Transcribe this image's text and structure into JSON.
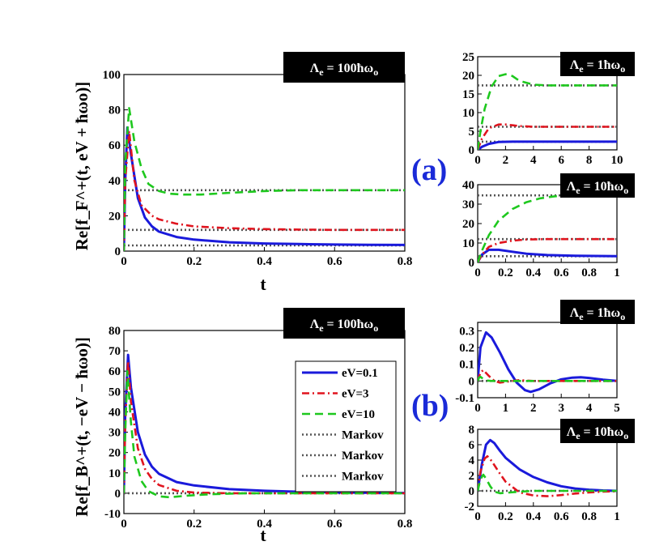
{
  "colors": {
    "blue": "#1a1adb",
    "red": "#e0141e",
    "green": "#1ec81e",
    "markov": "#555555"
  },
  "panel_tags": {
    "a": "(a)",
    "b": "(b)"
  },
  "legend": [
    {
      "label": "eV=0.1",
      "style": "solid",
      "color": "#1a1adb"
    },
    {
      "label": "eV=3",
      "style": "dashdot",
      "color": "#e0141e"
    },
    {
      "label": "eV=10",
      "style": "dashed",
      "color": "#1ec81e"
    },
    {
      "label": "Markov",
      "style": "dotted",
      "color": "#555555"
    },
    {
      "label": "Markov",
      "style": "dotted",
      "color": "#555555"
    },
    {
      "label": "Markov",
      "style": "dotted",
      "color": "#555555"
    }
  ],
  "chart_data": [
    {
      "id": "a_main",
      "type": "line",
      "title": "Λe = 100ħωo",
      "xlabel": "t",
      "ylabel": "Re[f_F^+(t, eV + ħωo)]",
      "xlim": [
        0,
        0.8
      ],
      "ylim": [
        0,
        100
      ],
      "xticks": [
        "0",
        "0.2",
        "0.4",
        "0.6",
        "0.8"
      ],
      "yticks": [
        "0",
        "20",
        "40",
        "60",
        "80",
        "100"
      ],
      "series": [
        {
          "name": "eV=0.1",
          "x": [
            0,
            0.004,
            0.01,
            0.02,
            0.04,
            0.06,
            0.08,
            0.1,
            0.15,
            0.2,
            0.3,
            0.4,
            0.5,
            0.6,
            0.7,
            0.8
          ],
          "y": [
            0,
            40,
            70,
            55,
            30,
            19,
            14,
            11,
            8,
            6.5,
            5,
            4.3,
            4,
            3.7,
            3.6,
            3.5
          ]
        },
        {
          "name": "eV=3",
          "x": [
            0,
            0.004,
            0.015,
            0.03,
            0.05,
            0.08,
            0.1,
            0.15,
            0.2,
            0.3,
            0.4,
            0.5,
            0.6,
            0.7,
            0.8
          ],
          "y": [
            0,
            40,
            68,
            40,
            26,
            20,
            18,
            15.5,
            14,
            13,
            12.5,
            12.2,
            12,
            12,
            12
          ]
        },
        {
          "name": "eV=10",
          "x": [
            0,
            0.004,
            0.015,
            0.03,
            0.05,
            0.07,
            0.1,
            0.13,
            0.17,
            0.22,
            0.3,
            0.4,
            0.5,
            0.6,
            0.7,
            0.8
          ],
          "y": [
            0,
            50,
            81,
            62,
            47,
            38,
            34,
            32.5,
            32,
            32,
            33,
            34,
            34.5,
            34.5,
            34.5,
            34.5
          ]
        },
        {
          "name": "Markov",
          "x": [
            0,
            0.8
          ],
          "y": [
            34.5,
            34.5
          ]
        },
        {
          "name": "Markov",
          "x": [
            0,
            0.8
          ],
          "y": [
            12,
            12
          ]
        },
        {
          "name": "Markov",
          "x": [
            0,
            0.8
          ],
          "y": [
            3.2,
            3.2
          ]
        }
      ]
    },
    {
      "id": "a_inset1",
      "type": "line",
      "title": "Λe = 1ħωo",
      "xlim": [
        0,
        10
      ],
      "ylim": [
        0,
        25
      ],
      "xticks": [
        "0",
        "2",
        "4",
        "6",
        "8",
        "10"
      ],
      "yticks": [
        "0",
        "5",
        "10",
        "15",
        "20",
        "25"
      ],
      "series": [
        {
          "name": "eV=0.1",
          "x": [
            0,
            0.3,
            0.8,
            1.5,
            2.5,
            4,
            6,
            8,
            10
          ],
          "y": [
            0,
            0.8,
            1.6,
            2.1,
            2.2,
            2.2,
            2.2,
            2.2,
            2.2
          ]
        },
        {
          "name": "eV=3",
          "x": [
            0,
            0.3,
            0.8,
            1.5,
            2,
            3,
            4,
            6,
            8,
            10
          ],
          "y": [
            0,
            3,
            5.8,
            6.8,
            6.8,
            6.4,
            6.2,
            6.2,
            6.2,
            6.2
          ]
        },
        {
          "name": "eV=10",
          "x": [
            0,
            0.2,
            0.5,
            1,
            1.5,
            2,
            2.5,
            3,
            4,
            5,
            6,
            8,
            10
          ],
          "y": [
            0,
            5,
            11,
            17,
            19.8,
            20.3,
            19.8,
            18.5,
            17.5,
            17.3,
            17.3,
            17.3,
            17.3
          ]
        },
        {
          "name": "Markov",
          "x": [
            0,
            10
          ],
          "y": [
            17.3,
            17.3
          ]
        },
        {
          "name": "Markov",
          "x": [
            0,
            10
          ],
          "y": [
            6.2,
            6.2
          ]
        },
        {
          "name": "Markov",
          "x": [
            0,
            10
          ],
          "y": [
            2.2,
            2.2
          ]
        }
      ]
    },
    {
      "id": "a_inset2",
      "type": "line",
      "title": "Λe = 10ħωo",
      "xlim": [
        0,
        1
      ],
      "ylim": [
        0,
        40
      ],
      "xticks": [
        "0",
        "0.2",
        "0.4",
        "0.6",
        "0.8",
        "1"
      ],
      "yticks": [
        "0",
        "10",
        "20",
        "30",
        "40"
      ],
      "series": [
        {
          "name": "eV=0.1",
          "x": [
            0,
            0.03,
            0.08,
            0.15,
            0.25,
            0.35,
            0.5,
            0.7,
            1
          ],
          "y": [
            0,
            4,
            6.5,
            6.5,
            5.5,
            4.5,
            3.8,
            3.4,
            3.2
          ]
        },
        {
          "name": "eV=3",
          "x": [
            0,
            0.03,
            0.08,
            0.15,
            0.25,
            0.35,
            0.5,
            0.7,
            1
          ],
          "y": [
            0,
            4,
            8,
            10,
            11.2,
            11.8,
            12,
            12,
            12
          ]
        },
        {
          "name": "eV=10",
          "x": [
            0,
            0.03,
            0.08,
            0.15,
            0.25,
            0.35,
            0.45,
            0.55,
            0.7,
            1
          ],
          "y": [
            0,
            6,
            14,
            21.5,
            27.5,
            31,
            33,
            34,
            34.5,
            34.5
          ]
        },
        {
          "name": "Markov",
          "x": [
            0,
            1
          ],
          "y": [
            34.5,
            34.5
          ]
        },
        {
          "name": "Markov",
          "x": [
            0,
            1
          ],
          "y": [
            12,
            12
          ]
        },
        {
          "name": "Markov",
          "x": [
            0,
            1
          ],
          "y": [
            3.2,
            3.2
          ]
        }
      ]
    },
    {
      "id": "b_main",
      "type": "line",
      "title": "Λe = 100ħωo",
      "xlabel": "t",
      "ylabel": "Re[f_B^+(t, −eV − ħωo)]",
      "xlim": [
        0,
        0.8
      ],
      "ylim": [
        -10,
        80
      ],
      "xticks": [
        "0",
        "0.2",
        "0.4",
        "0.6",
        "0.8"
      ],
      "yticks": [
        "-10",
        "0",
        "10",
        "20",
        "30",
        "40",
        "50",
        "60",
        "70",
        "80"
      ],
      "series": [
        {
          "name": "eV=0.1",
          "x": [
            0,
            0.004,
            0.012,
            0.02,
            0.04,
            0.06,
            0.08,
            0.1,
            0.15,
            0.2,
            0.3,
            0.4,
            0.5,
            0.6,
            0.7,
            0.8
          ],
          "y": [
            0,
            40,
            68,
            52,
            30,
            19,
            13,
            9.5,
            5.5,
            3.8,
            2,
            1.2,
            0.7,
            0.4,
            0.2,
            0.1
          ]
        },
        {
          "name": "eV=3",
          "x": [
            0,
            0.004,
            0.012,
            0.02,
            0.04,
            0.06,
            0.08,
            0.1,
            0.15,
            0.2,
            0.3,
            0.4,
            0.5,
            0.6,
            0.7,
            0.8
          ],
          "y": [
            0,
            35,
            65,
            45,
            22,
            12,
            7,
            4,
            1.2,
            0.3,
            0,
            0,
            0,
            0,
            0,
            0
          ]
        },
        {
          "name": "eV=10",
          "x": [
            0,
            0.004,
            0.01,
            0.02,
            0.03,
            0.05,
            0.07,
            0.1,
            0.13,
            0.18,
            0.25,
            0.35,
            0.5,
            0.8
          ],
          "y": [
            0,
            30,
            60,
            35,
            18,
            6,
            1,
            -1.5,
            -2,
            -1.2,
            -0.5,
            0,
            0,
            0
          ]
        },
        {
          "name": "Markov",
          "x": [
            0,
            0.8
          ],
          "y": [
            0,
            0
          ]
        }
      ]
    },
    {
      "id": "b_inset1",
      "type": "line",
      "title": "Λe = 1ħωo",
      "xlim": [
        0,
        5
      ],
      "ylim": [
        -0.1,
        0.35
      ],
      "xticks": [
        "0",
        "1",
        "2",
        "3",
        "4",
        "5"
      ],
      "yticks": [
        "-0.1",
        "0",
        "0.1",
        "0.2",
        "0.3"
      ],
      "series": [
        {
          "name": "eV=0.1",
          "x": [
            0,
            0.1,
            0.3,
            0.5,
            0.8,
            1.1,
            1.4,
            1.7,
            1.9,
            2.2,
            2.6,
            3,
            3.4,
            3.7,
            4,
            4.5,
            5
          ],
          "y": [
            0,
            0.2,
            0.29,
            0.26,
            0.17,
            0.07,
            -0.01,
            -0.055,
            -0.065,
            -0.05,
            -0.015,
            0.01,
            0.02,
            0.022,
            0.018,
            0.008,
            0.0
          ]
        },
        {
          "name": "eV=3",
          "x": [
            0,
            0.1,
            0.2,
            0.4,
            0.6,
            0.8,
            1,
            1.5,
            2,
            3,
            4,
            5
          ],
          "y": [
            0,
            0.05,
            0.065,
            0.03,
            0.0,
            -0.01,
            -0.005,
            0.005,
            0.0,
            0.0,
            0.0,
            0.0
          ]
        },
        {
          "name": "eV=10",
          "x": [
            0,
            0.05,
            0.1,
            0.2,
            0.3,
            0.5,
            1,
            2,
            5
          ],
          "y": [
            0,
            0.02,
            0.025,
            0.012,
            0.003,
            0.0,
            0.0,
            0.0,
            0.0
          ]
        },
        {
          "name": "Markov",
          "x": [
            0,
            5
          ],
          "y": [
            0,
            0
          ]
        }
      ]
    },
    {
      "id": "b_inset2",
      "type": "line",
      "title": "Λe = 10ħωo",
      "xlim": [
        0,
        1
      ],
      "ylim": [
        -2,
        8
      ],
      "xticks": [
        "0",
        "0.2",
        "0.4",
        "0.6",
        "0.8",
        "1"
      ],
      "yticks": [
        "-2",
        "0",
        "2",
        "4",
        "6",
        "8"
      ],
      "series": [
        {
          "name": "eV=0.1",
          "x": [
            0,
            0.03,
            0.06,
            0.09,
            0.12,
            0.16,
            0.2,
            0.3,
            0.4,
            0.5,
            0.6,
            0.7,
            0.8,
            0.9,
            1
          ],
          "y": [
            0,
            3.5,
            6,
            6.6,
            6.2,
            5.2,
            4.3,
            2.8,
            1.8,
            1.1,
            0.6,
            0.3,
            0.15,
            0.05,
            0
          ]
        },
        {
          "name": "eV=3",
          "x": [
            0,
            0.02,
            0.05,
            0.07,
            0.1,
            0.15,
            0.2,
            0.3,
            0.4,
            0.5,
            0.6,
            0.7,
            0.8,
            0.9,
            1
          ],
          "y": [
            0,
            2.5,
            4.2,
            4.5,
            3.9,
            2.5,
            1.2,
            -0.2,
            -0.6,
            -0.7,
            -0.55,
            -0.35,
            -0.2,
            -0.1,
            -0.05
          ]
        },
        {
          "name": "eV=10",
          "x": [
            0,
            0.02,
            0.04,
            0.06,
            0.09,
            0.12,
            0.16,
            0.2,
            0.3,
            0.4,
            0.6,
            1
          ],
          "y": [
            0,
            1.5,
            2.1,
            1.6,
            0.6,
            -0.1,
            -0.3,
            -0.25,
            -0.1,
            0,
            0,
            0
          ]
        },
        {
          "name": "Markov",
          "x": [
            0,
            1
          ],
          "y": [
            0,
            0
          ]
        }
      ]
    }
  ]
}
